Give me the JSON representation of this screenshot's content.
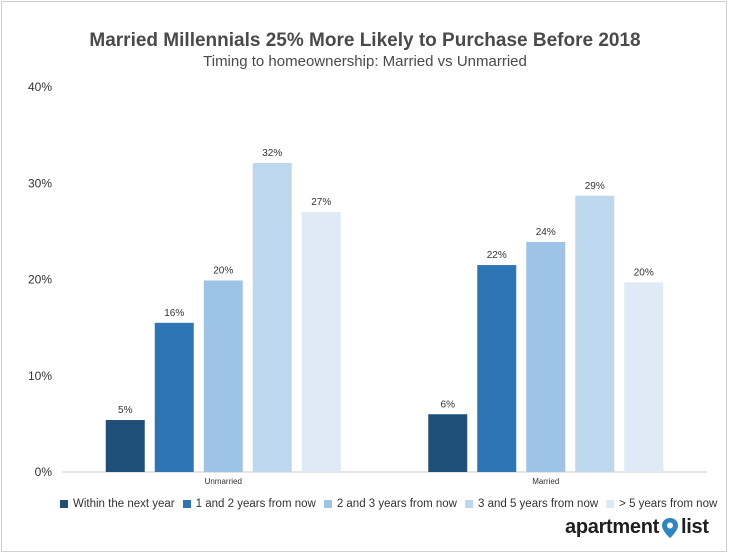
{
  "chart_data": {
    "type": "bar",
    "title": "Married Millennials 25% More Likely to Purchase Before 2018",
    "subtitle": "Timing to homeownership: Married vs Unmarried",
    "categories": [
      "Unmarried",
      "Married"
    ],
    "series": [
      {
        "name": "Within the next year",
        "values": [
          5.4,
          6.0
        ],
        "labels": [
          "5%",
          "6%"
        ],
        "color": "#1f4e79"
      },
      {
        "name": "1 and 2 years from now",
        "values": [
          15.5,
          21.5
        ],
        "labels": [
          "16%",
          "22%"
        ],
        "color": "#2e75b6"
      },
      {
        "name": "2 and 3 years from now",
        "values": [
          19.9,
          23.9
        ],
        "labels": [
          "20%",
          "24%"
        ],
        "color": "#9dc3e6"
      },
      {
        "name": "3 and 5 years from now",
        "values": [
          32.1,
          28.7
        ],
        "labels": [
          "32%",
          "29%"
        ],
        "color": "#bdd7ee"
      },
      {
        "name": "> 5 years from now",
        "values": [
          27.0,
          19.7
        ],
        "labels": [
          "27%",
          "20%"
        ],
        "color": "#deebf7"
      }
    ],
    "ylim": [
      0,
      40
    ],
    "yticks": [
      0,
      10,
      20,
      30,
      40
    ],
    "ytick_labels": [
      "0%",
      "10%",
      "20%",
      "30%",
      "40%"
    ],
    "grid": false,
    "legend_position": "bottom"
  },
  "brand": {
    "text_before": "apartment",
    "text_after": "list",
    "pin_color": "#2e86c1"
  }
}
